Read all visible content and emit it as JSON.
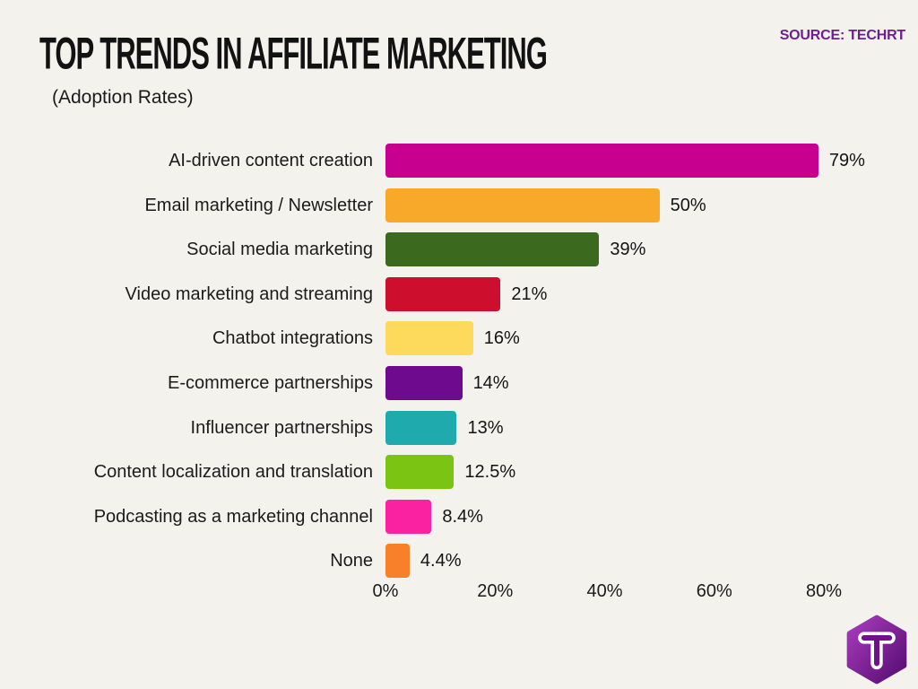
{
  "header": {
    "title": "TOP TRENDS IN AFFILIATE MARKETING",
    "subtitle": "(Adoption Rates)",
    "source": "SOURCE: TECHRT"
  },
  "colors": {
    "background": "#F3F2EC",
    "title_text": "#121212",
    "source_text": "#6E1E91",
    "label_text": "#1B1B1B"
  },
  "chart_data": {
    "type": "bar",
    "orientation": "horizontal",
    "title": "TOP TRENDS IN AFFILIATE MARKETING",
    "subtitle": "(Adoption Rates)",
    "xlabel": "",
    "ylabel": "",
    "xlim": [
      0,
      80
    ],
    "grid": false,
    "legend": "none",
    "x_tick_labels": [
      "0%",
      "20%",
      "40%",
      "60%",
      "80%"
    ],
    "x_tick_values": [
      0,
      20,
      40,
      60,
      80
    ],
    "categories": [
      "AI-driven content creation",
      "Email marketing / Newsletter",
      "Social media marketing",
      "Video marketing and streaming",
      "Chatbot integrations",
      "E-commerce partnerships",
      "Influencer partnerships",
      "Content localization and translation",
      "Podcasting as a marketing channel",
      "None"
    ],
    "values": [
      79,
      50,
      39,
      21,
      16,
      14,
      13,
      12.5,
      8.4,
      4.4
    ],
    "value_labels": [
      "79%",
      "50%",
      "39%",
      "21%",
      "16%",
      "14%",
      "13%",
      "12.5%",
      "8.4%",
      "4.4%"
    ],
    "bar_colors": [
      "#C70090",
      "#F9A929",
      "#3B691D",
      "#CE0E2D",
      "#FDDA5C",
      "#6E0A8E",
      "#1FAAAD",
      "#7BC413",
      "#FB22A2",
      "#F8802B"
    ]
  },
  "logo": {
    "name": "techrt-logo",
    "shape": "hexagon",
    "letter": "T",
    "gradient_top": "#A83CBE",
    "gradient_bottom": "#560C71"
  }
}
